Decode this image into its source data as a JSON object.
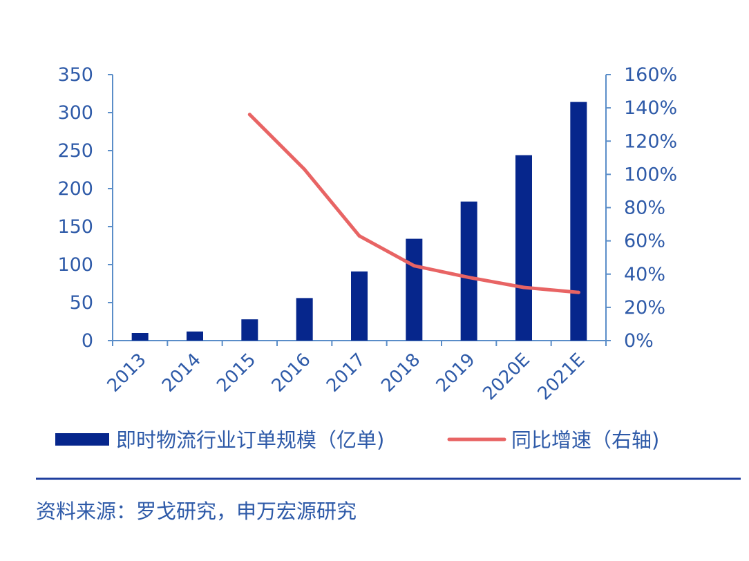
{
  "colors": {
    "bar": "#06268C",
    "line": "#E86464",
    "axis": "#5A8DC8",
    "text": "#2E5AA8",
    "rule": "#1F3F9E"
  },
  "chart_data": {
    "type": "bar",
    "categories": [
      "2013",
      "2014",
      "2015",
      "2016",
      "2017",
      "2018",
      "2019",
      "2020E",
      "2021E"
    ],
    "series": [
      {
        "name": "即时物流行业订单规模（亿单)",
        "type": "bar",
        "axis": "left",
        "values": [
          10,
          12,
          28,
          56,
          91,
          134,
          183,
          244,
          314
        ]
      },
      {
        "name": "同比增速（右轴)",
        "type": "line",
        "axis": "right",
        "values": [
          null,
          null,
          136,
          103,
          63,
          45,
          38,
          32,
          29
        ]
      }
    ],
    "y_left": {
      "min": 0,
      "max": 350,
      "ticks": [
        0,
        50,
        100,
        150,
        200,
        250,
        300,
        350
      ]
    },
    "y_right": {
      "min": 0,
      "max": 160,
      "ticks": [
        "0%",
        "20%",
        "40%",
        "60%",
        "80%",
        "100%",
        "120%",
        "140%",
        "160%"
      ]
    },
    "legend_placement": "bottom",
    "grid": false
  },
  "source": "资料来源：罗戈研究，申万宏源研究"
}
